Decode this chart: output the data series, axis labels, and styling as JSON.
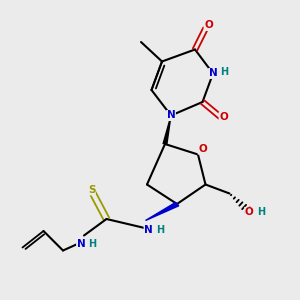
{
  "bg_color": "#ebebeb",
  "bond_color": "#000000",
  "atom_colors": {
    "N": "#0000cc",
    "O": "#cc0000",
    "S": "#999900",
    "H": "#008080",
    "C": "#000000"
  },
  "figsize": [
    3.0,
    3.0
  ],
  "dpi": 100
}
